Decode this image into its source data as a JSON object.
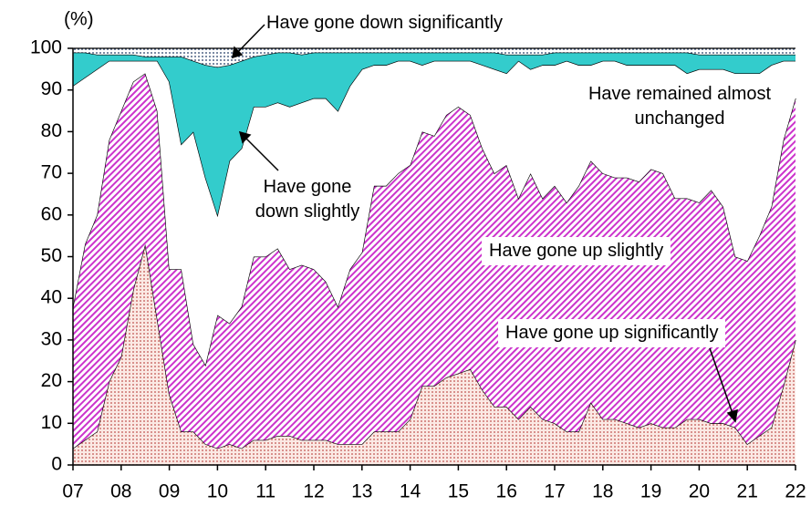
{
  "chart_data": {
    "type": "stacked-area",
    "ylabel": "(%)",
    "x": [
      2007,
      2007.25,
      2007.5,
      2007.75,
      2008,
      2008.25,
      2008.5,
      2008.75,
      2009,
      2009.25,
      2009.5,
      2009.75,
      2010,
      2010.25,
      2010.5,
      2010.75,
      2011,
      2011.25,
      2011.5,
      2011.75,
      2012,
      2012.25,
      2012.5,
      2012.75,
      2013,
      2013.25,
      2013.5,
      2013.75,
      2014,
      2014.25,
      2014.5,
      2014.75,
      2015,
      2015.25,
      2015.5,
      2015.75,
      2016,
      2016.25,
      2016.5,
      2016.75,
      2017,
      2017.25,
      2017.5,
      2017.75,
      2018,
      2018.25,
      2018.5,
      2018.75,
      2019,
      2019.25,
      2019.5,
      2019.75,
      2020,
      2020.25,
      2020.5,
      2020.75,
      2021,
      2021.25,
      2021.5,
      2021.75,
      2022
    ],
    "xlim": [
      2007,
      2022
    ],
    "xticks": [
      {
        "value": 2007,
        "label": "07"
      },
      {
        "value": 2008,
        "label": "08"
      },
      {
        "value": 2009,
        "label": "09"
      },
      {
        "value": 2010,
        "label": "10"
      },
      {
        "value": 2011,
        "label": "11"
      },
      {
        "value": 2012,
        "label": "12"
      },
      {
        "value": 2013,
        "label": "13"
      },
      {
        "value": 2014,
        "label": "14"
      },
      {
        "value": 2015,
        "label": "15"
      },
      {
        "value": 2016,
        "label": "16"
      },
      {
        "value": 2017,
        "label": "17"
      },
      {
        "value": 2018,
        "label": "18"
      },
      {
        "value": 2019,
        "label": "19"
      },
      {
        "value": 2020,
        "label": "20"
      },
      {
        "value": 2021,
        "label": "21"
      },
      {
        "value": 2022,
        "label": "22"
      }
    ],
    "ylim": [
      0,
      100
    ],
    "yticks": [
      0,
      10,
      20,
      30,
      40,
      50,
      60,
      70,
      80,
      90,
      100
    ],
    "series": [
      {
        "name": "Have gone up significantly",
        "color": "#c0504d",
        "fill": "dots",
        "values": [
          4,
          6,
          8,
          20,
          26,
          42,
          53,
          35,
          17,
          8,
          8,
          5,
          4,
          5,
          4,
          6,
          6,
          7,
          7,
          6,
          6,
          6,
          5,
          5,
          5,
          8,
          8,
          8,
          11,
          19,
          19,
          21,
          22,
          23,
          18,
          14,
          14,
          11,
          14,
          11,
          10,
          8,
          8,
          15,
          11,
          11,
          10,
          9,
          10,
          9,
          9,
          11,
          11,
          10,
          10,
          9,
          5,
          7,
          9,
          19,
          30
        ]
      },
      {
        "name": "Have gone up slightly",
        "color": "#cc33cc",
        "fill": "hatch",
        "values": [
          34,
          47,
          52,
          58,
          59,
          50,
          41,
          50,
          30,
          39,
          21,
          19,
          32,
          29,
          34,
          44,
          44,
          45,
          40,
          42,
          41,
          38,
          33,
          42,
          46,
          59,
          59,
          62,
          61,
          61,
          60,
          63,
          64,
          61,
          58,
          56,
          58,
          53,
          56,
          53,
          57,
          55,
          59,
          58,
          59,
          58,
          59,
          59,
          61,
          61,
          55,
          53,
          52,
          56,
          52,
          41,
          44,
          48,
          53,
          59,
          58
        ]
      },
      {
        "name": "Have remained almost unchanged",
        "color": "#ffffff",
        "fill": "solid",
        "values": [
          53,
          40,
          35,
          19,
          12,
          5,
          3,
          12,
          45,
          30,
          51,
          45,
          24,
          39,
          38,
          36,
          36,
          35,
          39,
          39,
          41,
          44,
          47,
          44,
          44,
          29,
          29,
          27,
          25,
          16,
          18,
          13,
          11,
          13,
          20,
          25,
          22,
          33,
          25,
          32,
          29,
          34,
          29,
          23,
          27,
          28,
          27,
          28,
          25,
          26,
          32,
          30,
          32,
          29,
          33,
          44,
          45,
          39,
          34,
          19,
          9
        ]
      },
      {
        "name": "Have gone down slightly",
        "color": "#33cccc",
        "fill": "solid",
        "values": [
          8,
          6,
          3.5,
          1.5,
          1.5,
          1.5,
          1,
          1,
          6,
          21,
          17,
          27,
          35.5,
          23,
          21,
          12,
          12.5,
          12,
          13,
          11.5,
          11,
          11,
          14,
          8,
          4,
          3,
          3,
          2,
          2,
          3,
          2,
          2,
          2,
          2,
          3,
          4,
          4.5,
          1.5,
          3.5,
          2.5,
          3,
          2,
          3,
          3,
          2,
          2,
          3,
          3,
          3,
          3,
          3,
          5,
          3.5,
          3.5,
          3.5,
          4.5,
          4.5,
          4.5,
          2.5,
          1.5,
          1.5
        ]
      },
      {
        "name": "Have gone down significantly",
        "color": "#1f3864",
        "fill": "dots",
        "values": [
          1,
          1,
          1.5,
          1.5,
          1.5,
          1.5,
          2,
          2,
          2,
          2,
          3,
          4,
          4.5,
          4,
          3,
          2,
          1.5,
          1,
          1,
          1.5,
          1,
          1,
          1,
          1,
          1,
          1,
          1,
          1,
          1,
          1,
          1,
          1,
          1,
          1,
          1,
          1,
          1.5,
          1.5,
          1.5,
          1.5,
          1,
          1,
          1,
          1,
          1,
          1,
          1,
          1,
          1,
          1,
          1,
          1,
          1.5,
          1.5,
          1.5,
          1.5,
          1.5,
          1.5,
          1.5,
          1.5,
          1.5
        ]
      }
    ]
  }
}
